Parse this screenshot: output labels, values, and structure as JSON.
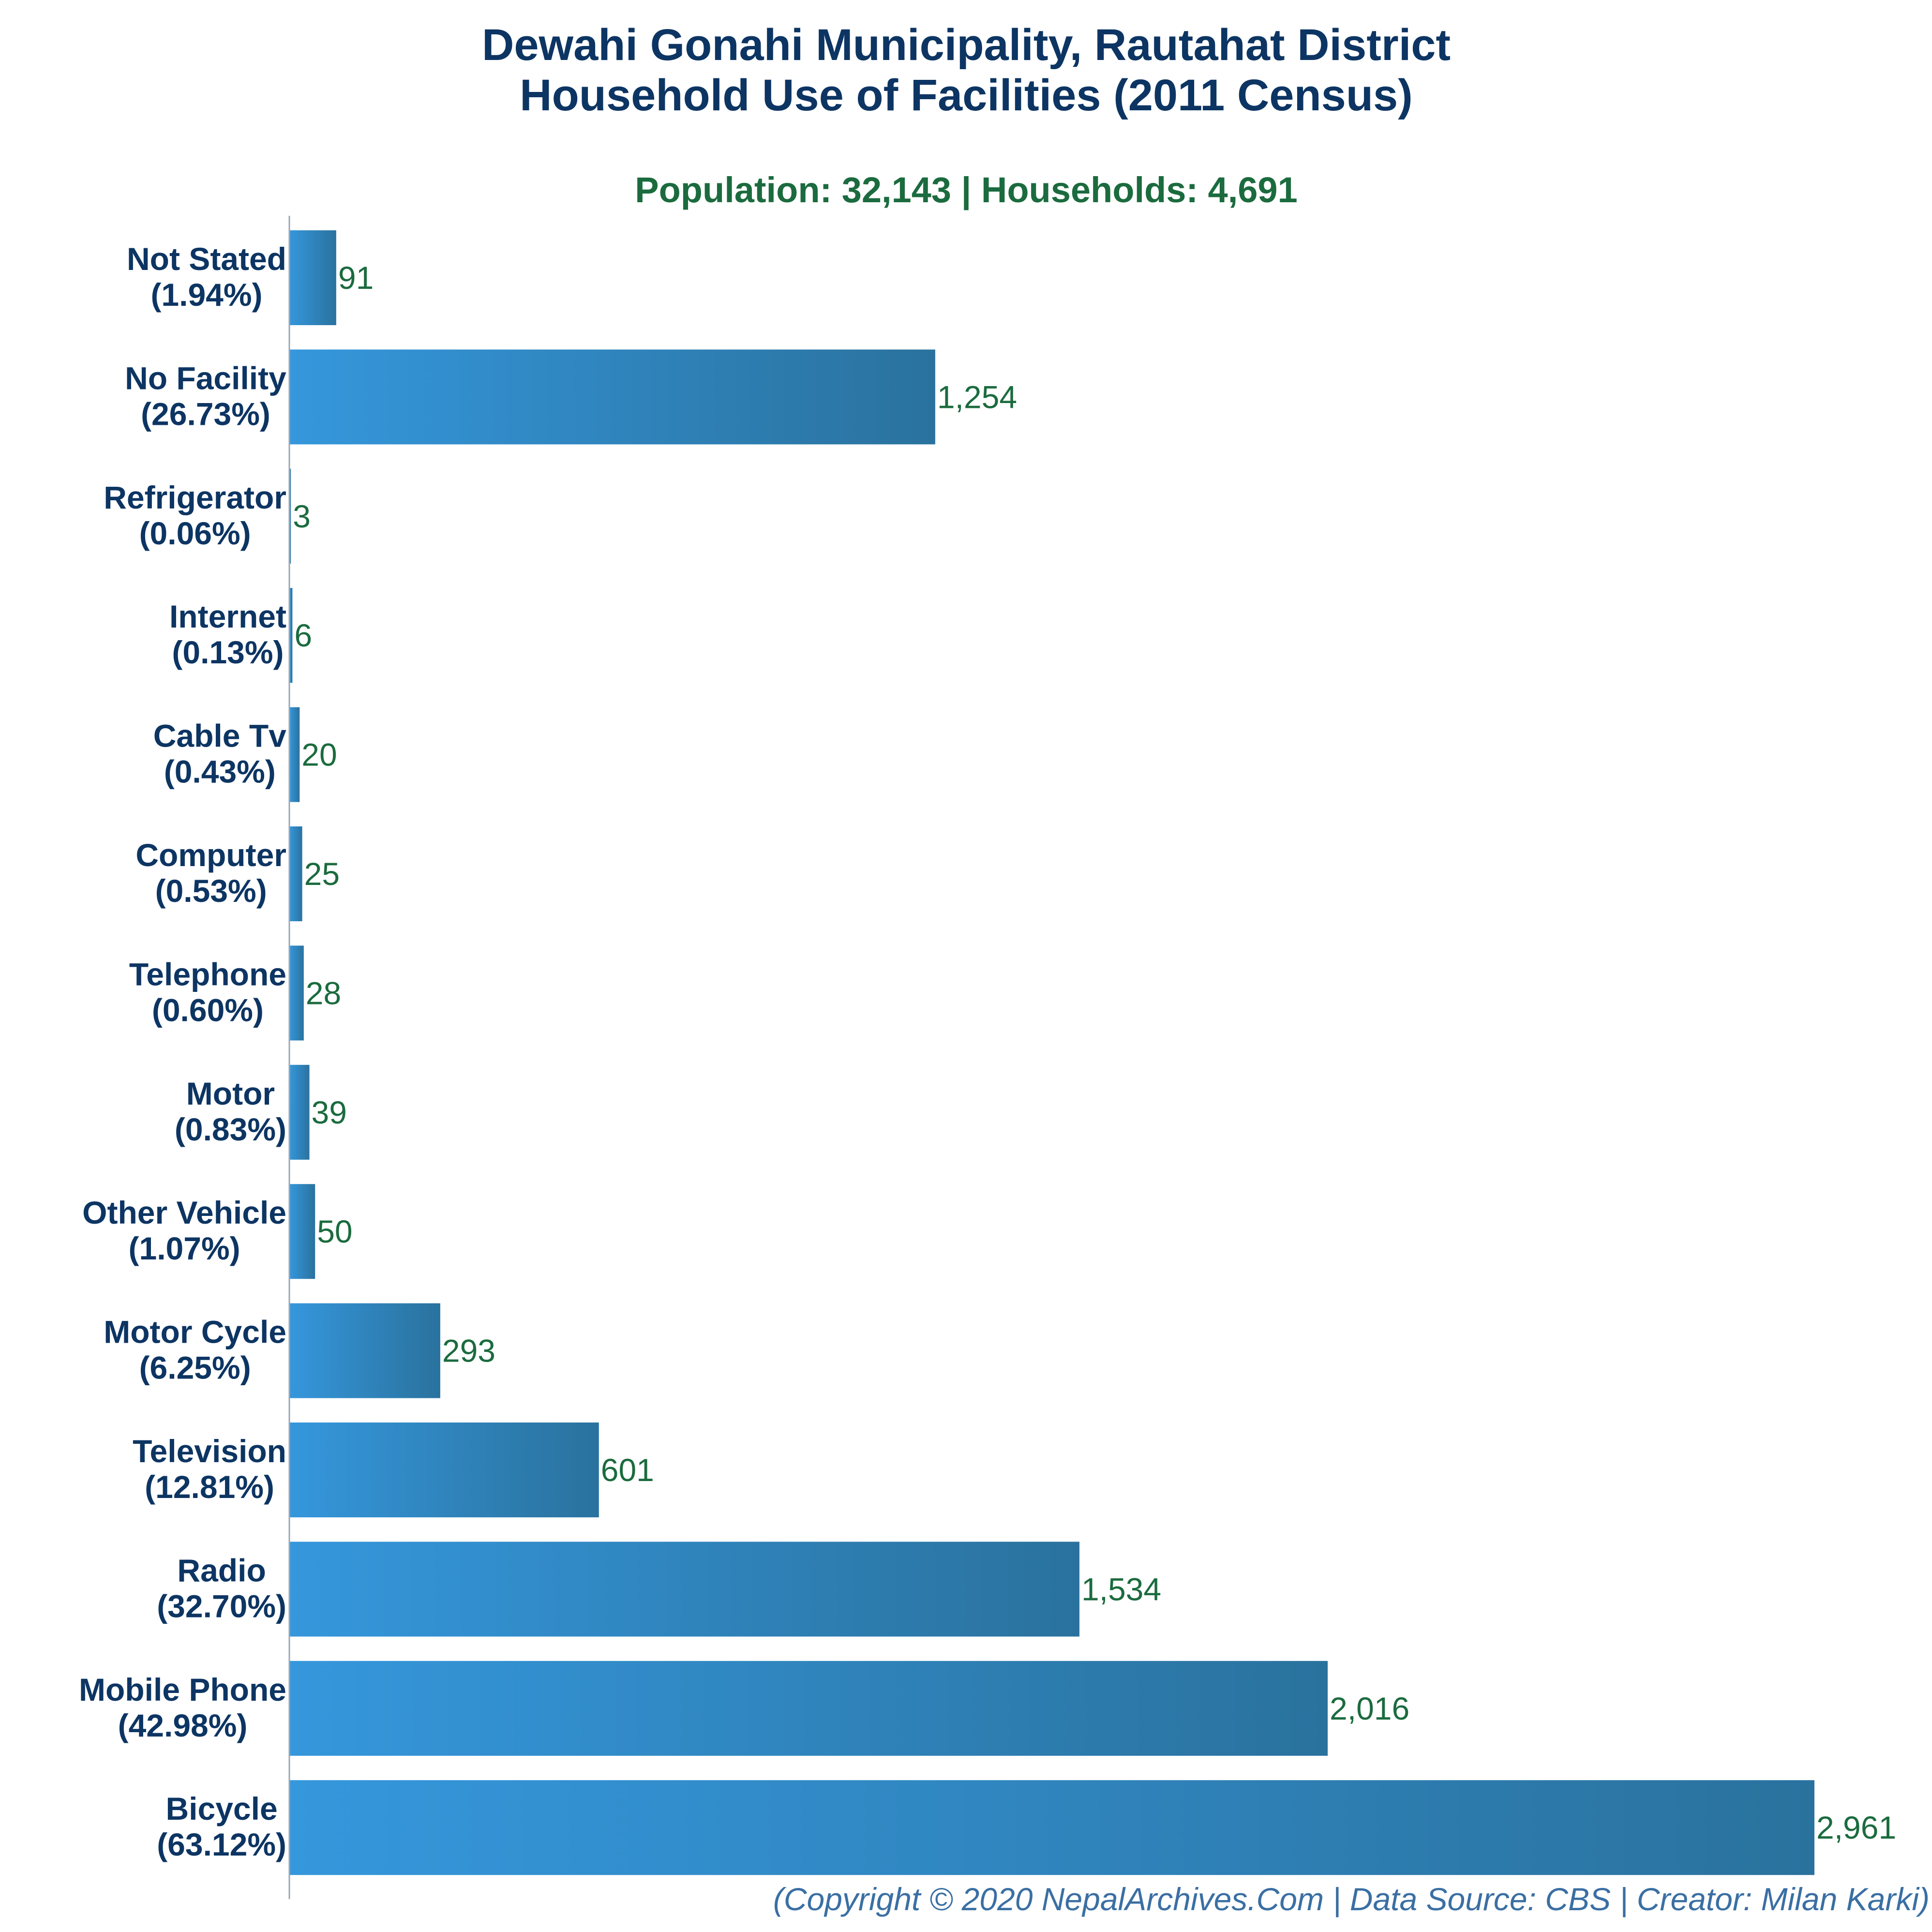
{
  "chart_data": {
    "type": "bar",
    "orientation": "horizontal",
    "title_line1": "Dewahi Gonahi Municipality, Rautahat District",
    "title_line2": "Household Use of Facilities (2011 Census)",
    "subtitle": "Population: 32,143 | Households: 4,691",
    "footer": "(Copyright © 2020 NepalArchives.Com | Data Source: CBS | Creator: Milan Karki)",
    "xlim": [
      0,
      3000
    ],
    "grid": false,
    "categories": [
      "Not Stated",
      "No Facility",
      "Refrigerator",
      "Internet",
      "Cable Tv",
      "Computer",
      "Telephone",
      "Motor",
      "Other Vehicle",
      "Motor Cycle",
      "Television",
      "Radio",
      "Mobile Phone",
      "Bicycle"
    ],
    "percent_labels": [
      "(1.94%)",
      "(26.73%)",
      "(0.06%)",
      "(0.13%)",
      "(0.43%)",
      "(0.53%)",
      "(0.60%)",
      "(0.83%)",
      "(1.07%)",
      "(6.25%)",
      "(12.81%)",
      "(32.70%)",
      "(42.98%)",
      "(63.12%)"
    ],
    "values": [
      91,
      1254,
      3,
      6,
      20,
      25,
      28,
      39,
      50,
      293,
      601,
      1534,
      2016,
      2961
    ],
    "value_labels": [
      "91",
      "1,254",
      "3",
      "6",
      "20",
      "25",
      "28",
      "39",
      "50",
      "293",
      "601",
      "1,534",
      "2,016",
      "2,961"
    ],
    "colors": {
      "bar_start": "#3597dc",
      "bar_end": "#2a729e",
      "title": "#0d3563",
      "subtitle": "#1b6b3e",
      "value_label": "#1b6b3e",
      "footer": "#3a6fa3",
      "axis": "#9aa7b3"
    }
  }
}
